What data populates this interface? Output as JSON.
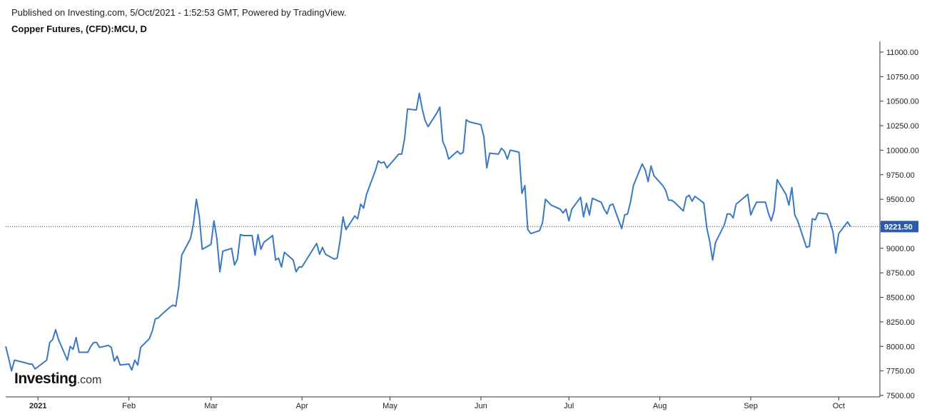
{
  "header": {
    "published": "Published on Investing.com, 5/Oct/2021 - 1:52:53 GMT, Powered by TradingView."
  },
  "brand": {
    "name": "Investing",
    "suffix": ".com"
  },
  "colors": {
    "line": "#3a78c3",
    "price_line": "#2c5aa8",
    "price_label_bg": "#2c5aa8"
  },
  "chart_data": {
    "type": "line",
    "title": "Copper Futures, (CFD):MCU, D",
    "yticks": [
      "7500.00",
      "7750.00",
      "8000.00",
      "8250.00",
      "8500.00",
      "8750.00",
      "9000.00",
      "9250.00",
      "9500.00",
      "9750.00",
      "10000.00",
      "10250.00",
      "10500.00",
      "10750.00",
      "11000.00"
    ],
    "ytick_values": [
      7500,
      7750,
      8000,
      8250,
      8500,
      8750,
      9000,
      9250,
      9500,
      9750,
      10000,
      10250,
      10500,
      10750,
      11000
    ],
    "ylim": [
      7500,
      11100
    ],
    "xticks": [
      {
        "label": "2021",
        "date": "2021-01-01",
        "bold": true
      },
      {
        "label": "Feb",
        "date": "2021-02-01"
      },
      {
        "label": "Mar",
        "date": "2021-03-01"
      },
      {
        "label": "Apr",
        "date": "2021-04-01"
      },
      {
        "label": "May",
        "date": "2021-05-01"
      },
      {
        "label": "Jun",
        "date": "2021-06-01"
      },
      {
        "label": "Jul",
        "date": "2021-07-01"
      },
      {
        "label": "Aug",
        "date": "2021-08-01"
      },
      {
        "label": "Sep",
        "date": "2021-09-01"
      },
      {
        "label": "Oct",
        "date": "2021-10-01"
      }
    ],
    "xlim": [
      "2020-12-21",
      "2021-10-07"
    ],
    "last_price": 9221.5,
    "last_price_label": "9221.50",
    "series": [
      {
        "x": [
          "2020-12-21",
          "2020-12-22",
          "2020-12-23",
          "2020-12-24",
          "2020-12-28",
          "2020-12-29",
          "2020-12-30",
          "2020-12-31",
          "2021-01-04",
          "2021-01-05",
          "2021-01-06",
          "2021-01-07",
          "2021-01-08",
          "2021-01-11",
          "2021-01-12",
          "2021-01-13",
          "2021-01-14",
          "2021-01-15",
          "2021-01-18",
          "2021-01-19",
          "2021-01-20",
          "2021-01-21",
          "2021-01-22",
          "2021-01-25",
          "2021-01-26",
          "2021-01-27",
          "2021-01-28",
          "2021-01-29",
          "2021-02-01",
          "2021-02-02",
          "2021-02-03",
          "2021-02-04",
          "2021-02-05",
          "2021-02-08",
          "2021-02-09",
          "2021-02-10",
          "2021-02-11",
          "2021-02-12",
          "2021-02-15",
          "2021-02-16",
          "2021-02-17",
          "2021-02-18",
          "2021-02-19",
          "2021-02-22",
          "2021-02-23",
          "2021-02-24",
          "2021-02-25",
          "2021-02-26",
          "2021-03-01",
          "2021-03-02",
          "2021-03-03",
          "2021-03-04",
          "2021-03-05",
          "2021-03-08",
          "2021-03-09",
          "2021-03-10",
          "2021-03-11",
          "2021-03-12",
          "2021-03-15",
          "2021-03-16",
          "2021-03-17",
          "2021-03-18",
          "2021-03-19",
          "2021-03-22",
          "2021-03-23",
          "2021-03-24",
          "2021-03-25",
          "2021-03-26",
          "2021-03-29",
          "2021-03-30",
          "2021-03-31",
          "2021-04-01",
          "2021-04-06",
          "2021-04-07",
          "2021-04-08",
          "2021-04-09",
          "2021-04-12",
          "2021-04-13",
          "2021-04-14",
          "2021-04-15",
          "2021-04-16",
          "2021-04-19",
          "2021-04-20",
          "2021-04-21",
          "2021-04-22",
          "2021-04-23",
          "2021-04-26",
          "2021-04-27",
          "2021-04-28",
          "2021-04-29",
          "2021-04-30",
          "2021-05-04",
          "2021-05-05",
          "2021-05-06",
          "2021-05-07",
          "2021-05-10",
          "2021-05-11",
          "2021-05-12",
          "2021-05-13",
          "2021-05-14",
          "2021-05-17",
          "2021-05-18",
          "2021-05-19",
          "2021-05-20",
          "2021-05-21",
          "2021-05-24",
          "2021-05-25",
          "2021-05-26",
          "2021-05-27",
          "2021-05-28",
          "2021-06-01",
          "2021-06-02",
          "2021-06-03",
          "2021-06-04",
          "2021-06-07",
          "2021-06-08",
          "2021-06-09",
          "2021-06-10",
          "2021-06-11",
          "2021-06-14",
          "2021-06-15",
          "2021-06-16",
          "2021-06-17",
          "2021-06-18",
          "2021-06-21",
          "2021-06-22",
          "2021-06-23",
          "2021-06-24",
          "2021-06-25",
          "2021-06-28",
          "2021-06-29",
          "2021-06-30",
          "2021-07-01",
          "2021-07-02",
          "2021-07-05",
          "2021-07-06",
          "2021-07-07",
          "2021-07-08",
          "2021-07-09",
          "2021-07-12",
          "2021-07-13",
          "2021-07-14",
          "2021-07-15",
          "2021-07-16",
          "2021-07-19",
          "2021-07-20",
          "2021-07-21",
          "2021-07-22",
          "2021-07-23",
          "2021-07-26",
          "2021-07-27",
          "2021-07-28",
          "2021-07-29",
          "2021-07-30",
          "2021-08-02",
          "2021-08-03",
          "2021-08-04",
          "2021-08-05",
          "2021-08-06",
          "2021-08-09",
          "2021-08-10",
          "2021-08-11",
          "2021-08-12",
          "2021-08-13",
          "2021-08-16",
          "2021-08-17",
          "2021-08-18",
          "2021-08-19",
          "2021-08-20",
          "2021-08-23",
          "2021-08-24",
          "2021-08-25",
          "2021-08-26",
          "2021-08-27",
          "2021-08-31",
          "2021-09-01",
          "2021-09-02",
          "2021-09-03",
          "2021-09-06",
          "2021-09-07",
          "2021-09-08",
          "2021-09-09",
          "2021-09-10",
          "2021-09-13",
          "2021-09-14",
          "2021-09-15",
          "2021-09-16",
          "2021-09-17",
          "2021-09-20",
          "2021-09-21",
          "2021-09-22",
          "2021-09-23",
          "2021-09-24",
          "2021-09-27",
          "2021-09-28",
          "2021-09-29",
          "2021-09-30",
          "2021-10-01",
          "2021-10-04",
          "2021-10-05"
        ],
        "values": [
          8000,
          7880,
          7750,
          7860,
          7830,
          7820,
          7820,
          7770,
          7860,
          8040,
          8070,
          8170,
          8070,
          7860,
          8000,
          7970,
          8090,
          7940,
          7940,
          8000,
          8040,
          8040,
          7990,
          8010,
          7990,
          7850,
          7900,
          7810,
          7820,
          7760,
          7860,
          7810,
          7990,
          8080,
          8160,
          8280,
          8290,
          8320,
          8400,
          8420,
          8410,
          8610,
          8930,
          9100,
          9250,
          9500,
          9320,
          8990,
          9040,
          9280,
          9100,
          8760,
          8970,
          9000,
          8830,
          8890,
          9140,
          9130,
          9130,
          8930,
          9140,
          8990,
          9060,
          9130,
          8880,
          8900,
          8810,
          8960,
          8880,
          8760,
          8810,
          8810,
          9050,
          8940,
          9010,
          8940,
          8890,
          8900,
          9080,
          9320,
          9190,
          9330,
          9300,
          9450,
          9410,
          9550,
          9790,
          9890,
          9870,
          9880,
          9820,
          9960,
          9960,
          10120,
          10420,
          10410,
          10580,
          10420,
          10300,
          10240,
          10380,
          10440,
          10090,
          10020,
          9910,
          9990,
          9960,
          9980,
          10310,
          10290,
          10260,
          10140,
          9820,
          9970,
          9960,
          10020,
          9990,
          9910,
          10000,
          9980,
          9560,
          9640,
          9190,
          9150,
          9180,
          9260,
          9500,
          9470,
          9440,
          9400,
          9360,
          9400,
          9280,
          9400,
          9520,
          9320,
          9460,
          9340,
          9510,
          9470,
          9400,
          9350,
          9440,
          9450,
          9200,
          9340,
          9350,
          9470,
          9640,
          9860,
          9800,
          9680,
          9840,
          9740,
          9640,
          9590,
          9490,
          9490,
          9470,
          9380,
          9520,
          9540,
          9480,
          9530,
          9460,
          9210,
          9070,
          8880,
          9060,
          9240,
          9350,
          9350,
          9310,
          9450,
          9550,
          9340,
          9410,
          9470,
          9470,
          9360,
          9280,
          9390,
          9700,
          9550,
          9440,
          9620,
          9340,
          9280,
          9010,
          9020,
          9300,
          9290,
          9360,
          9350,
          9270,
          9170,
          8950,
          9150,
          9270,
          9221.5
        ]
      }
    ]
  }
}
